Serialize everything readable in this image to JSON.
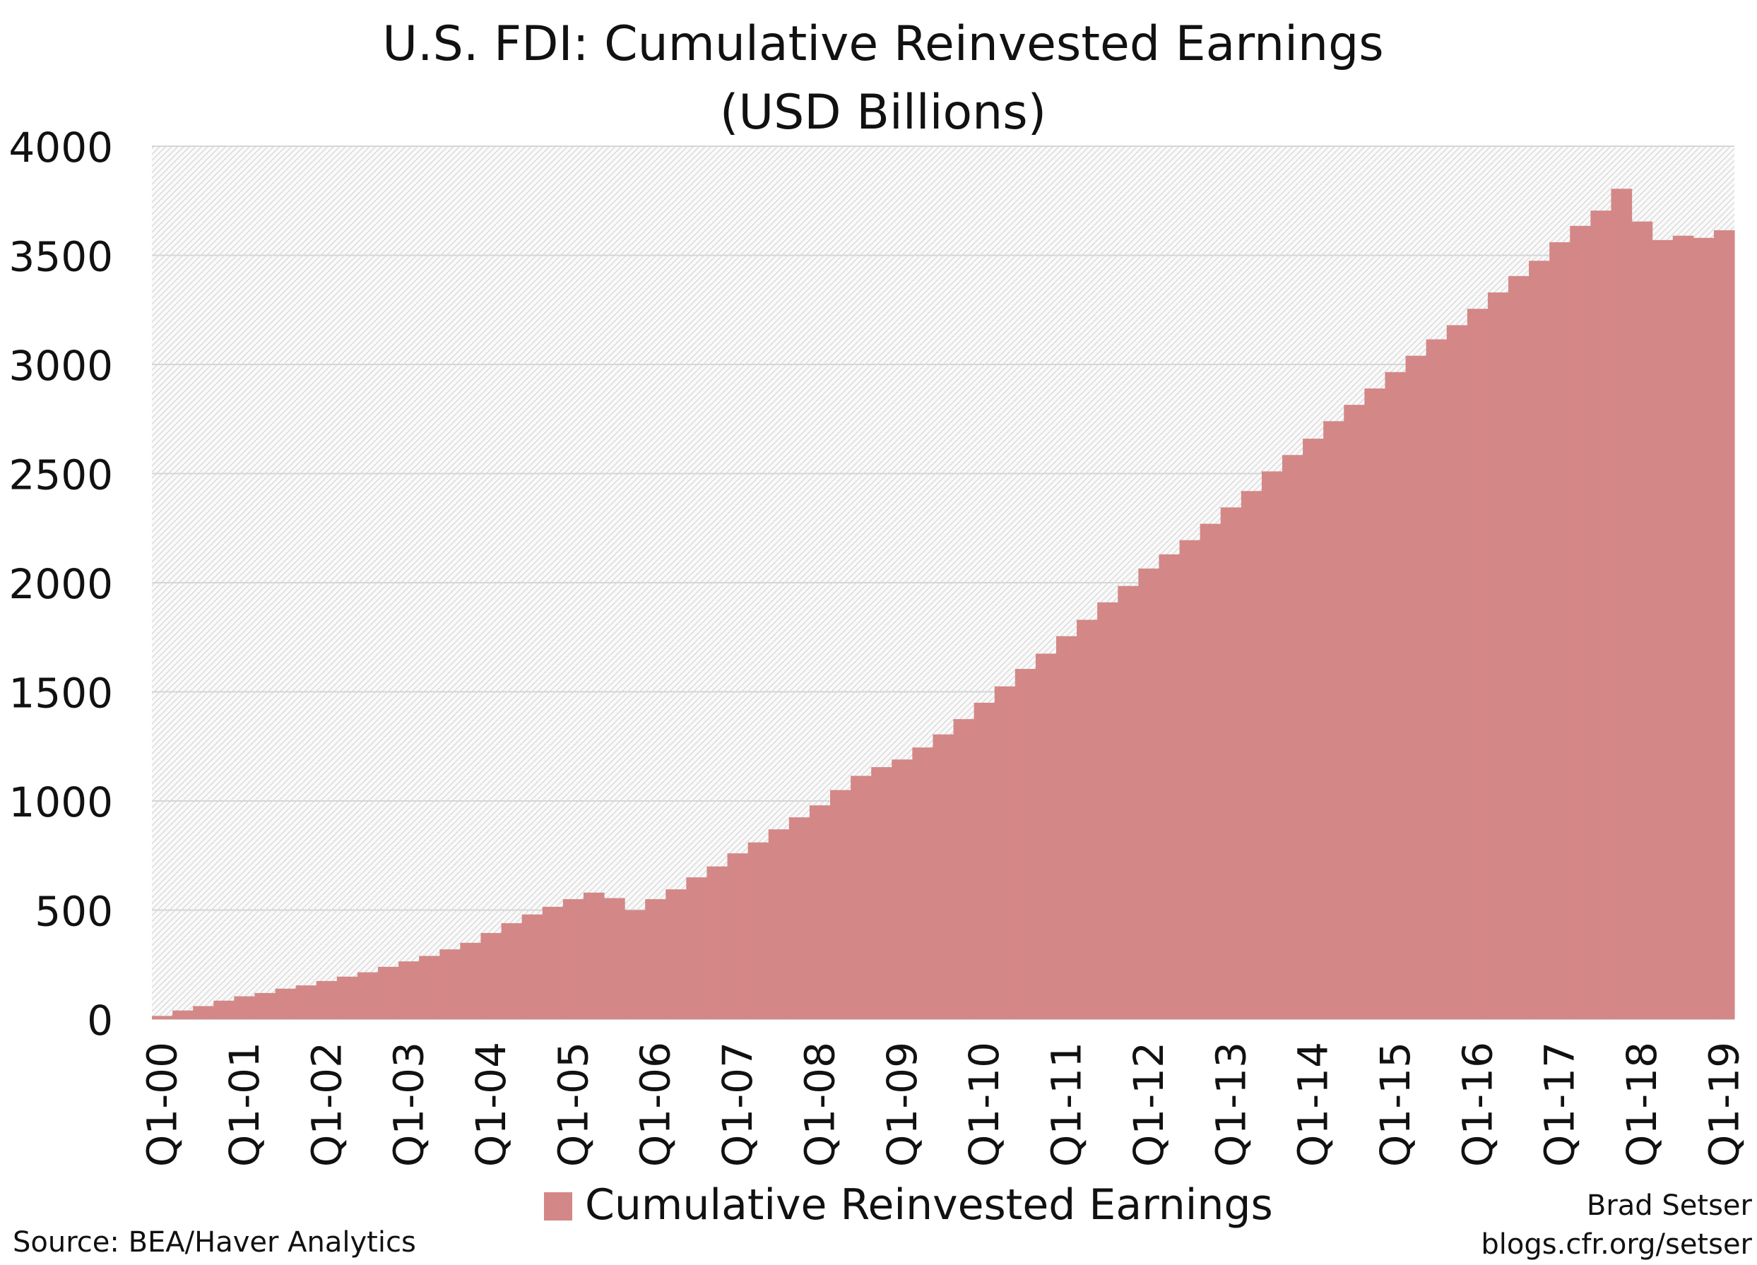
{
  "chart_data": {
    "type": "area",
    "title": "U.S. FDI: Cumulative Reinvested Earnings",
    "subtitle": "(USD Billions)",
    "xlabel": "",
    "ylabel": "",
    "ylim": [
      0,
      4000
    ],
    "yticks": [
      "0",
      "500",
      "1000",
      "1500",
      "2000",
      "2500",
      "3000",
      "3500",
      "4000"
    ],
    "grid": true,
    "legend_position": "bottom",
    "xtick_labels": [
      "Q1-00",
      "Q1-01",
      "Q1-02",
      "Q1-03",
      "Q1-04",
      "Q1-05",
      "Q1-06",
      "Q1-07",
      "Q1-08",
      "Q1-09",
      "Q1-10",
      "Q1-11",
      "Q1-12",
      "Q1-13",
      "Q1-14",
      "Q1-15",
      "Q1-16",
      "Q1-17",
      "Q1-18",
      "Q1-19"
    ],
    "series": [
      {
        "name": "Cumulative Reinvested Earnings",
        "color": "#d48787",
        "values": [
          15,
          40,
          60,
          85,
          105,
          120,
          140,
          155,
          175,
          195,
          215,
          240,
          265,
          290,
          320,
          350,
          395,
          440,
          480,
          515,
          550,
          580,
          555,
          500,
          550,
          595,
          650,
          700,
          760,
          810,
          870,
          925,
          980,
          1050,
          1115,
          1155,
          1190,
          1245,
          1305,
          1375,
          1450,
          1525,
          1605,
          1675,
          1755,
          1830,
          1910,
          1985,
          2065,
          2130,
          2195,
          2270,
          2345,
          2420,
          2510,
          2585,
          2660,
          2740,
          2815,
          2890,
          2965,
          3040,
          3115,
          3180,
          3255,
          3330,
          3405,
          3475,
          3560,
          3635,
          3705,
          3805,
          3655,
          3570,
          3590,
          3580,
          3615
        ]
      }
    ]
  },
  "source": "Source: BEA/Haver Analytics",
  "author": "Brad Setser",
  "website": "blogs.cfr.org/setser"
}
